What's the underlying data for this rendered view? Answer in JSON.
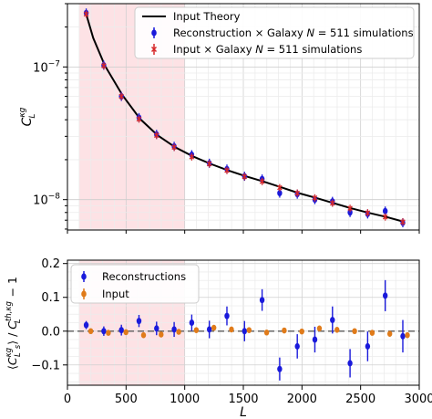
{
  "chart_data": [
    {
      "type": "line",
      "ylabel": "C_L^{κg}",
      "yscale": "log",
      "xlim": [
        0,
        3000
      ],
      "ylim": [
        5.9e-09,
        3e-07
      ],
      "yticks": [
        {
          "value": 1e-07,
          "base": "10",
          "exp": "−7"
        },
        {
          "value": 1e-08,
          "base": "10",
          "exp": "−8"
        }
      ],
      "shaded_region": {
        "x_range": [
          100,
          1000
        ],
        "color": "#fde0e4"
      },
      "grid": true,
      "legend_position": "upper right",
      "series": [
        {
          "name": "Input Theory",
          "kind": "line",
          "color": "#000000",
          "x": [
            160,
            220,
            320,
            470,
            620,
            770,
            920,
            1070,
            1220,
            1370,
            1520,
            1670,
            1820,
            1970,
            2120,
            2270,
            2420,
            2570,
            2720,
            2870
          ],
          "y": [
            2.5e-07,
            1.65e-07,
            1.02e-07,
            6.1e-08,
            4.05e-08,
            3.05e-08,
            2.48e-08,
            2.12e-08,
            1.86e-08,
            1.66e-08,
            1.5e-08,
            1.37e-08,
            1.24e-08,
            1.12e-08,
            1.03e-08,
            9.4e-09,
            8.6e-09,
            7.95e-09,
            7.4e-09,
            6.8e-09
          ]
        },
        {
          "name": "Reconstruction × Galaxy N=511 simulations",
          "kind": "errorbar",
          "color": "#1a1adb",
          "x": [
            160,
            310,
            460,
            610,
            760,
            910,
            1060,
            1210,
            1360,
            1510,
            1660,
            1810,
            1960,
            2110,
            2260,
            2410,
            2560,
            2710,
            2860
          ],
          "y": [
            2.55e-07,
            1.03e-07,
            6e-08,
            4.15e-08,
            3.1e-08,
            2.52e-08,
            2.18e-08,
            1.88e-08,
            1.7e-08,
            1.5e-08,
            1.43e-08,
            1.12e-08,
            1.1e-08,
            1e-08,
            9.7e-09,
            8e-09,
            7.8e-09,
            8.2e-09,
            6.7e-09
          ]
        },
        {
          "name": "Input × Galaxy N=511 simulations",
          "kind": "errorbar",
          "color": "#d62728",
          "x": [
            160,
            310,
            460,
            610,
            760,
            910,
            1060,
            1210,
            1360,
            1510,
            1660,
            1810,
            1960,
            2110,
            2260,
            2410,
            2560,
            2710,
            2860
          ],
          "y": [
            2.5e-07,
            1.02e-07,
            6e-08,
            4.05e-08,
            3.05e-08,
            2.48e-08,
            2.1e-08,
            1.86e-08,
            1.66e-08,
            1.49e-08,
            1.37e-08,
            1.23e-08,
            1.12e-08,
            1.03e-08,
            9.4e-09,
            8.6e-09,
            7.95e-09,
            7.4e-09,
            6.8e-09
          ]
        }
      ]
    },
    {
      "type": "scatter",
      "xlabel": "L",
      "ylabel": "⟨C_L^{κg}⟩_s / C_L^{th,κg} − 1",
      "xlim": [
        0,
        3000
      ],
      "ylim": [
        -0.16,
        0.21
      ],
      "xticks": [
        "0",
        "500",
        "1000",
        "1500",
        "2000",
        "2500",
        "3000"
      ],
      "yticks": [
        "−0.1",
        "0.0",
        "0.1",
        "0.2"
      ],
      "shaded_region": {
        "x_range": [
          100,
          1000
        ],
        "color": "#fde0e4"
      },
      "reference_line": {
        "y": 0,
        "style": "dashed",
        "color": "#666666"
      },
      "grid": true,
      "legend_position": "upper left",
      "series": [
        {
          "name": "Reconstructions",
          "color": "#1a1adb",
          "x": [
            160,
            310,
            460,
            610,
            760,
            910,
            1060,
            1210,
            1360,
            1510,
            1660,
            1810,
            1960,
            2110,
            2260,
            2410,
            2560,
            2710,
            2860
          ],
          "y": [
            0.018,
            0.0,
            0.003,
            0.03,
            0.008,
            0.005,
            0.025,
            0.005,
            0.045,
            0.0,
            0.092,
            -0.112,
            -0.045,
            -0.025,
            0.033,
            -0.095,
            -0.045,
            0.105,
            -0.015
          ],
          "err": [
            0.012,
            0.014,
            0.016,
            0.018,
            0.02,
            0.022,
            0.024,
            0.026,
            0.028,
            0.03,
            0.032,
            0.034,
            0.036,
            0.038,
            0.04,
            0.042,
            0.044,
            0.046,
            0.048
          ]
        },
        {
          "name": "Input",
          "color": "#e07b1a",
          "x": [
            160,
            310,
            460,
            610,
            760,
            910,
            1060,
            1210,
            1360,
            1510,
            1660,
            1810,
            1960,
            2110,
            2260,
            2410,
            2560,
            2710,
            2860
          ],
          "y": [
            0.0,
            -0.005,
            -0.003,
            -0.012,
            -0.01,
            -0.002,
            0.003,
            0.01,
            0.005,
            0.003,
            -0.004,
            0.002,
            -0.001,
            0.008,
            0.004,
            0.0,
            -0.005,
            -0.008,
            -0.012
          ]
        }
      ]
    }
  ]
}
